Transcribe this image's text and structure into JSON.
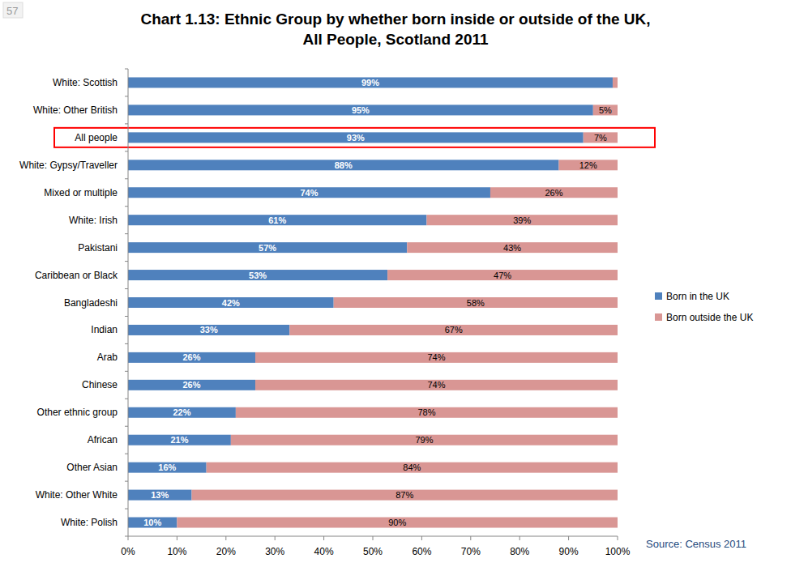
{
  "page_number": "57",
  "chart_data": {
    "type": "bar",
    "orientation": "horizontal",
    "stacked": true,
    "data_labels": true,
    "grid": false,
    "legend": "right",
    "title": "Chart 1.13: Ethnic Group by whether born inside or outside of the UK,\nAll People, Scotland 2011",
    "highlight": "All people",
    "annotations": [
      {
        "text": "Source: Census 2011"
      }
    ],
    "categories": [
      "White: Scottish",
      "White: Other British",
      "All people",
      "White: Gypsy/Traveller",
      "Mixed or multiple",
      "White: Irish",
      "Pakistani",
      "Caribbean or Black",
      "Bangladeshi",
      "Indian",
      "Arab",
      "Chinese",
      "Other ethnic group",
      "African",
      "Other Asian",
      "White: Other White",
      "White: Polish"
    ],
    "series": [
      {
        "name": "Born in the UK",
        "color": "#4f81bd",
        "values": [
          99,
          95,
          93,
          88,
          74,
          61,
          57,
          53,
          42,
          33,
          26,
          26,
          22,
          21,
          16,
          13,
          10
        ],
        "value_labels": [
          "99%",
          "95%",
          "93%",
          "88%",
          "74%",
          "61%",
          "57%",
          "53%",
          "42%",
          "33%",
          "26%",
          "26%",
          "22%",
          "21%",
          "16%",
          "13%",
          "10%"
        ]
      },
      {
        "name": "Born outside the UK",
        "color": "#d99694",
        "values": [
          1,
          5,
          7,
          12,
          26,
          39,
          43,
          47,
          58,
          67,
          74,
          74,
          78,
          79,
          84,
          87,
          90
        ],
        "value_labels": [
          null,
          "5%",
          "7%",
          "12%",
          "26%",
          "39%",
          "43%",
          "47%",
          "58%",
          "67%",
          "74%",
          "74%",
          "78%",
          "79%",
          "84%",
          "87%",
          "90%"
        ]
      }
    ],
    "xlim": [
      0,
      100
    ],
    "xticks": [
      {
        "value": 0,
        "label": "0%"
      },
      {
        "value": 10,
        "label": "10%"
      },
      {
        "value": 20,
        "label": "20%"
      },
      {
        "value": 30,
        "label": "30%"
      },
      {
        "value": 40,
        "label": "40%"
      },
      {
        "value": 50,
        "label": "50%"
      },
      {
        "value": 60,
        "label": "60%"
      },
      {
        "value": 70,
        "label": "70%"
      },
      {
        "value": 80,
        "label": "80%"
      },
      {
        "value": 90,
        "label": "90%"
      },
      {
        "value": 100,
        "label": "100%"
      }
    ]
  }
}
